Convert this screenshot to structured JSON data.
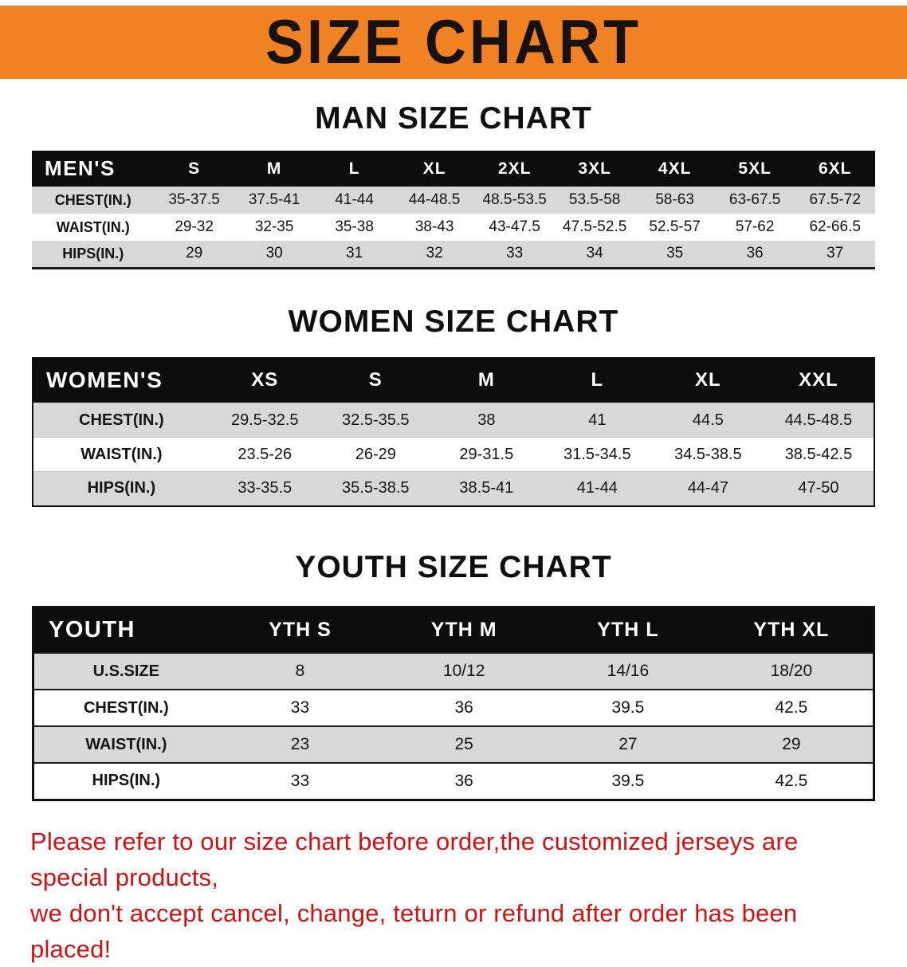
{
  "banner": {
    "title": "SIZE CHART",
    "bg_color": "#F08224"
  },
  "man_section": {
    "heading": "MAN SIZE CHART",
    "table": {
      "header": [
        "MEN'S",
        "S",
        "M",
        "L",
        "XL",
        "2XL",
        "3XL",
        "4XL",
        "5XL",
        "6XL"
      ],
      "rows": [
        [
          "CHEST(IN.)",
          "35-37.5",
          "37.5-41",
          "41-44",
          "44-48.5",
          "48.5-53.5",
          "53.5-58",
          "58-63",
          "63-67.5",
          "67.5-72"
        ],
        [
          "WAIST(IN.)",
          "29-32",
          "32-35",
          "35-38",
          "38-43",
          "43-47.5",
          "47.5-52.5",
          "52.5-57",
          "57-62",
          "62-66.5"
        ],
        [
          "HIPS(IN.)",
          "29",
          "30",
          "31",
          "32",
          "33",
          "34",
          "35",
          "36",
          "37"
        ]
      ]
    }
  },
  "women_section": {
    "heading": "WOMEN SIZE CHART",
    "table": {
      "header": [
        "WOMEN'S",
        "XS",
        "S",
        "M",
        "L",
        "XL",
        "XXL"
      ],
      "rows": [
        [
          "CHEST(IN.)",
          "29.5-32.5",
          "32.5-35.5",
          "38",
          "41",
          "44.5",
          "44.5-48.5"
        ],
        [
          "WAIST(IN.)",
          "23.5-26",
          "26-29",
          "29-31.5",
          "31.5-34.5",
          "34.5-38.5",
          "38.5-42.5"
        ],
        [
          "HIPS(IN.)",
          "33-35.5",
          "35.5-38.5",
          "38.5-41",
          "41-44",
          "44-47",
          "47-50"
        ]
      ]
    }
  },
  "youth_section": {
    "heading": "YOUTH SIZE CHART",
    "table": {
      "header": [
        "YOUTH",
        "YTH S",
        "YTH M",
        "YTH L",
        "YTH XL"
      ],
      "rows": [
        [
          "U.S.SIZE",
          "8",
          "10/12",
          "14/16",
          "18/20"
        ],
        [
          "CHEST(IN.)",
          "33",
          "36",
          "39.5",
          "42.5"
        ],
        [
          "WAIST(IN.)",
          "23",
          "25",
          "27",
          "29"
        ],
        [
          "HIPS(IN.)",
          "33",
          "36",
          "39.5",
          "42.5"
        ]
      ]
    }
  },
  "disclaimer": {
    "line1": "Please refer to our size chart before order,the customized jerseys are special products,",
    "line2": "we don't accept cancel, change, teturn or refund after order has been placed!",
    "color": "#d01212"
  }
}
